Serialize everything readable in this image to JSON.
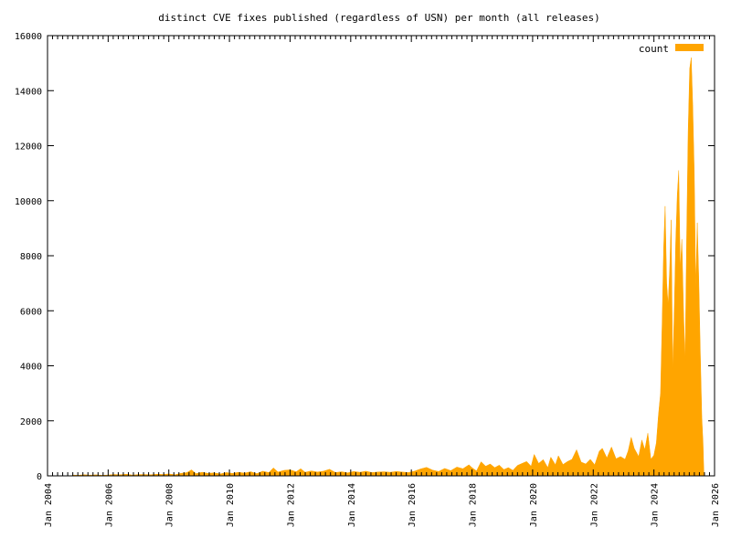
{
  "chart_data": {
    "type": "area",
    "title": "distinct CVE fixes published (regardless of USN) per month (all releases)",
    "xlabel": "",
    "ylabel": "",
    "xlim": [
      2004.0,
      2026.0
    ],
    "ylim": [
      0,
      16000
    ],
    "x_ticks": [
      {
        "value": 2004,
        "label": "Jan 2004"
      },
      {
        "value": 2006,
        "label": "Jan 2006"
      },
      {
        "value": 2008,
        "label": "Jan 2008"
      },
      {
        "value": 2010,
        "label": "Jan 2010"
      },
      {
        "value": 2012,
        "label": "Jan 2012"
      },
      {
        "value": 2014,
        "label": "Jan 2014"
      },
      {
        "value": 2016,
        "label": "Jan 2016"
      },
      {
        "value": 2018,
        "label": "Jan 2018"
      },
      {
        "value": 2020,
        "label": "Jan 2020"
      },
      {
        "value": 2022,
        "label": "Jan 2022"
      },
      {
        "value": 2024,
        "label": "Jan 2024"
      },
      {
        "value": 2026,
        "label": "Jan 2026"
      }
    ],
    "y_ticks": [
      0,
      2000,
      4000,
      6000,
      8000,
      10000,
      12000,
      14000,
      16000
    ],
    "legend": {
      "position": "top-right",
      "entries": [
        "count"
      ]
    },
    "grid": false,
    "series": [
      {
        "name": "count",
        "color": "#ffa500",
        "points": [
          [
            2004.79,
            0
          ],
          [
            2004.83,
            30
          ],
          [
            2005.0,
            20
          ],
          [
            2005.2,
            40
          ],
          [
            2005.4,
            25
          ],
          [
            2005.6,
            35
          ],
          [
            2005.8,
            20
          ],
          [
            2006.0,
            30
          ],
          [
            2006.2,
            50
          ],
          [
            2006.4,
            40
          ],
          [
            2006.6,
            60
          ],
          [
            2006.8,
            30
          ],
          [
            2007.0,
            45
          ],
          [
            2007.2,
            50
          ],
          [
            2007.4,
            40
          ],
          [
            2007.6,
            60
          ],
          [
            2007.8,
            50
          ],
          [
            2008.0,
            70
          ],
          [
            2008.2,
            40
          ],
          [
            2008.4,
            90
          ],
          [
            2008.6,
            120
          ],
          [
            2008.75,
            220
          ],
          [
            2008.9,
            80
          ],
          [
            2009.1,
            130
          ],
          [
            2009.3,
            90
          ],
          [
            2009.5,
            110
          ],
          [
            2009.7,
            70
          ],
          [
            2009.9,
            120
          ],
          [
            2010.1,
            90
          ],
          [
            2010.3,
            130
          ],
          [
            2010.5,
            100
          ],
          [
            2010.7,
            150
          ],
          [
            2010.9,
            80
          ],
          [
            2011.1,
            170
          ],
          [
            2011.3,
            120
          ],
          [
            2011.45,
            290
          ],
          [
            2011.6,
            140
          ],
          [
            2011.8,
            200
          ],
          [
            2012.0,
            220
          ],
          [
            2012.2,
            150
          ],
          [
            2012.35,
            260
          ],
          [
            2012.5,
            130
          ],
          [
            2012.7,
            180
          ],
          [
            2012.9,
            140
          ],
          [
            2013.1,
            170
          ],
          [
            2013.3,
            240
          ],
          [
            2013.5,
            120
          ],
          [
            2013.7,
            150
          ],
          [
            2013.9,
            110
          ],
          [
            2014.1,
            160
          ],
          [
            2014.3,
            130
          ],
          [
            2014.5,
            170
          ],
          [
            2014.7,
            120
          ],
          [
            2014.9,
            140
          ],
          [
            2015.1,
            150
          ],
          [
            2015.3,
            130
          ],
          [
            2015.5,
            160
          ],
          [
            2015.7,
            140
          ],
          [
            2015.9,
            120
          ],
          [
            2016.1,
            170
          ],
          [
            2016.3,
            250
          ],
          [
            2016.5,
            310
          ],
          [
            2016.7,
            210
          ],
          [
            2016.9,
            160
          ],
          [
            2017.1,
            270
          ],
          [
            2017.3,
            190
          ],
          [
            2017.5,
            320
          ],
          [
            2017.7,
            260
          ],
          [
            2017.9,
            400
          ],
          [
            2018.0,
            300
          ],
          [
            2018.15,
            180
          ],
          [
            2018.3,
            510
          ],
          [
            2018.45,
            350
          ],
          [
            2018.6,
            430
          ],
          [
            2018.75,
            300
          ],
          [
            2018.9,
            390
          ],
          [
            2019.05,
            230
          ],
          [
            2019.2,
            300
          ],
          [
            2019.35,
            200
          ],
          [
            2019.5,
            380
          ],
          [
            2019.65,
            450
          ],
          [
            2019.8,
            520
          ],
          [
            2019.95,
            350
          ],
          [
            2020.05,
            780
          ],
          [
            2020.2,
            450
          ],
          [
            2020.35,
            590
          ],
          [
            2020.5,
            300
          ],
          [
            2020.6,
            680
          ],
          [
            2020.75,
            400
          ],
          [
            2020.85,
            730
          ],
          [
            2021.0,
            410
          ],
          [
            2021.15,
            520
          ],
          [
            2021.3,
            600
          ],
          [
            2021.45,
            950
          ],
          [
            2021.6,
            500
          ],
          [
            2021.75,
            430
          ],
          [
            2021.9,
            600
          ],
          [
            2022.05,
            400
          ],
          [
            2022.2,
            900
          ],
          [
            2022.3,
            1000
          ],
          [
            2022.45,
            650
          ],
          [
            2022.6,
            1050
          ],
          [
            2022.75,
            620
          ],
          [
            2022.9,
            700
          ],
          [
            2023.05,
            600
          ],
          [
            2023.15,
            900
          ],
          [
            2023.25,
            1400
          ],
          [
            2023.35,
            1000
          ],
          [
            2023.5,
            700
          ],
          [
            2023.6,
            1300
          ],
          [
            2023.7,
            950
          ],
          [
            2023.8,
            1550
          ],
          [
            2023.9,
            600
          ],
          [
            2024.0,
            750
          ],
          [
            2024.08,
            1200
          ],
          [
            2024.15,
            2200
          ],
          [
            2024.22,
            3000
          ],
          [
            2024.27,
            5500
          ],
          [
            2024.32,
            8300
          ],
          [
            2024.37,
            9800
          ],
          [
            2024.42,
            7000
          ],
          [
            2024.47,
            6200
          ],
          [
            2024.52,
            7500
          ],
          [
            2024.57,
            9300
          ],
          [
            2024.62,
            3800
          ],
          [
            2024.67,
            6000
          ],
          [
            2024.72,
            8500
          ],
          [
            2024.77,
            10200
          ],
          [
            2024.82,
            11100
          ],
          [
            2024.87,
            7500
          ],
          [
            2024.92,
            8600
          ],
          [
            2024.98,
            5800
          ],
          [
            2025.03,
            4200
          ],
          [
            2025.08,
            8800
          ],
          [
            2025.13,
            12500
          ],
          [
            2025.18,
            14800
          ],
          [
            2025.23,
            15200
          ],
          [
            2025.28,
            13500
          ],
          [
            2025.33,
            11000
          ],
          [
            2025.38,
            6800
          ],
          [
            2025.43,
            9200
          ],
          [
            2025.48,
            7200
          ],
          [
            2025.53,
            4500
          ],
          [
            2025.58,
            2100
          ],
          [
            2025.62,
            1200
          ],
          [
            2025.65,
            0
          ]
        ]
      }
    ]
  }
}
